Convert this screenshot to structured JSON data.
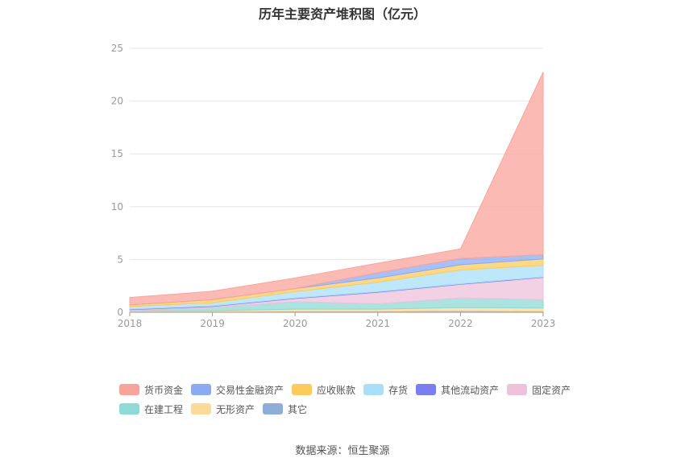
{
  "title": "历年主要资产堆积图（亿元）",
  "source": "数据来源：恒生聚源",
  "chart_data": {
    "type": "area",
    "stacked": true,
    "x": [
      "2018",
      "2019",
      "2020",
      "2021",
      "2022",
      "2023"
    ],
    "ylim": [
      0,
      25
    ],
    "yticks": [
      0,
      5,
      10,
      15,
      20,
      25
    ],
    "grid": true,
    "legend_position": "bottom",
    "series": [
      {
        "name": "其它",
        "color": "#8fadd9",
        "values": [
          0.05,
          0.05,
          0.1,
          0.1,
          0.15,
          0.1
        ]
      },
      {
        "name": "无形资产",
        "color": "#fdd99a",
        "values": [
          0.1,
          0.1,
          0.2,
          0.2,
          0.3,
          0.3
        ]
      },
      {
        "name": "在建工程",
        "color": "#8fd9d6",
        "values": [
          0.0,
          0.3,
          0.7,
          0.5,
          0.9,
          0.8
        ]
      },
      {
        "name": "固定资产",
        "color": "#eec2db",
        "values": [
          0.1,
          0.1,
          0.3,
          1.1,
          1.3,
          2.1
        ]
      },
      {
        "name": "其他流动资产",
        "color": "#7b7ef0",
        "values": [
          0.05,
          0.05,
          0.05,
          0.05,
          0.05,
          0.05
        ]
      },
      {
        "name": "存货",
        "color": "#a9dff8",
        "values": [
          0.25,
          0.3,
          0.6,
          0.9,
          1.3,
          1.1
        ]
      },
      {
        "name": "应收账款",
        "color": "#fdcb5c",
        "values": [
          0.15,
          0.3,
          0.3,
          0.4,
          0.5,
          0.6
        ]
      },
      {
        "name": "交易性金融资产",
        "color": "#8aabf2",
        "values": [
          0.0,
          0.0,
          0.0,
          0.5,
          0.6,
          0.4
        ]
      },
      {
        "name": "货币资金",
        "color": "#f9a49b",
        "values": [
          0.7,
          0.8,
          1.0,
          0.9,
          0.9,
          17.3
        ]
      }
    ]
  },
  "legend_order": [
    "货币资金",
    "交易性金融资产",
    "应收账款",
    "存货",
    "其他流动资产",
    "固定资产",
    "在建工程",
    "无形资产",
    "其它"
  ]
}
